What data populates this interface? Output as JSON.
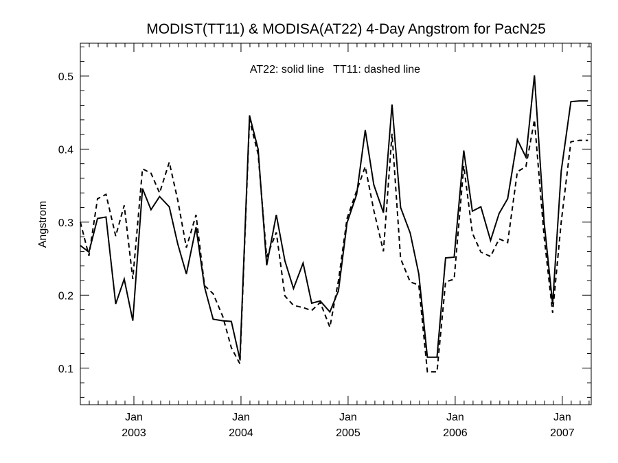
{
  "chart_data": {
    "type": "line",
    "title": "MODIST(TT11) & MODISA(AT22) 4-Day Angstrom for PacN25",
    "xlabel": "",
    "ylabel": "Angstrom",
    "annotation": "AT22: solid line   TT11: dashed line",
    "x_unit": "decimal year",
    "xlim": [
      2002.5,
      2007.27
    ],
    "ylim": [
      0.05,
      0.545
    ],
    "y_ticks": [
      0.1,
      0.2,
      0.3,
      0.4,
      0.5
    ],
    "y_tick_labels": [
      "0.1",
      "0.2",
      "0.3",
      "0.4",
      "0.5"
    ],
    "x_ticks": [
      2003.0,
      2004.0,
      2005.0,
      2006.0,
      2007.0
    ],
    "x_tick_labels": [
      {
        "month": "Jan",
        "year": "2003"
      },
      {
        "month": "Jan",
        "year": "2004"
      },
      {
        "month": "Jan",
        "year": "2005"
      },
      {
        "month": "Jan",
        "year": "2006"
      },
      {
        "month": "Jan",
        "year": "2007"
      }
    ],
    "grid": false,
    "series": [
      {
        "name": "AT22",
        "style": "solid",
        "color": "#000000",
        "x": [
          2002.5,
          2002.58,
          2002.66,
          2002.74,
          2002.83,
          2002.91,
          2002.99,
          2003.08,
          2003.16,
          2003.24,
          2003.33,
          2003.41,
          2003.49,
          2003.58,
          2003.66,
          2003.74,
          2003.83,
          2003.91,
          2003.99,
          2004.08,
          2004.16,
          2004.24,
          2004.33,
          2004.41,
          2004.49,
          2004.58,
          2004.66,
          2004.74,
          2004.83,
          2004.91,
          2004.99,
          2005.08,
          2005.16,
          2005.24,
          2005.33,
          2005.41,
          2005.49,
          2005.58,
          2005.66,
          2005.74,
          2005.83,
          2005.91,
          2005.99,
          2006.08,
          2006.16,
          2006.24,
          2006.33,
          2006.41,
          2006.49,
          2006.58,
          2006.66,
          2006.74,
          2006.83,
          2006.91,
          2006.99,
          2007.08,
          2007.16,
          2007.24
        ],
        "y": [
          0.268,
          0.259,
          0.305,
          0.307,
          0.188,
          0.222,
          0.165,
          0.346,
          0.317,
          0.335,
          0.321,
          0.27,
          0.229,
          0.293,
          0.211,
          0.167,
          0.165,
          0.164,
          0.112,
          0.446,
          0.4,
          0.241,
          0.31,
          0.247,
          0.209,
          0.244,
          0.189,
          0.192,
          0.177,
          0.206,
          0.299,
          0.338,
          0.426,
          0.351,
          0.313,
          0.461,
          0.32,
          0.285,
          0.229,
          0.115,
          0.115,
          0.251,
          0.252,
          0.398,
          0.315,
          0.321,
          0.275,
          0.312,
          0.332,
          0.413,
          0.389,
          0.501,
          0.3,
          0.188,
          0.37,
          0.465,
          0.466,
          0.466
        ]
      },
      {
        "name": "TT11",
        "style": "dashed",
        "color": "#000000",
        "x": [
          2002.5,
          2002.58,
          2002.66,
          2002.74,
          2002.83,
          2002.91,
          2002.99,
          2003.08,
          2003.16,
          2003.24,
          2003.33,
          2003.41,
          2003.49,
          2003.58,
          2003.66,
          2003.74,
          2003.83,
          2003.91,
          2003.99,
          2004.08,
          2004.16,
          2004.24,
          2004.33,
          2004.41,
          2004.49,
          2004.58,
          2004.66,
          2004.74,
          2004.83,
          2004.91,
          2004.99,
          2005.08,
          2005.16,
          2005.24,
          2005.33,
          2005.41,
          2005.49,
          2005.58,
          2005.66,
          2005.74,
          2005.83,
          2005.91,
          2005.99,
          2006.08,
          2006.16,
          2006.24,
          2006.33,
          2006.41,
          2006.49,
          2006.58,
          2006.66,
          2006.74,
          2006.83,
          2006.91,
          2006.99,
          2007.08,
          2007.16,
          2007.24
        ],
        "y": [
          0.3,
          0.254,
          0.332,
          0.338,
          0.281,
          0.323,
          0.222,
          0.373,
          0.367,
          0.34,
          0.382,
          0.33,
          0.265,
          0.31,
          0.213,
          0.202,
          0.171,
          0.128,
          0.106,
          0.44,
          0.393,
          0.252,
          0.286,
          0.199,
          0.186,
          0.183,
          0.179,
          0.19,
          0.156,
          0.22,
          0.305,
          0.343,
          0.376,
          0.316,
          0.26,
          0.421,
          0.25,
          0.218,
          0.214,
          0.095,
          0.095,
          0.218,
          0.222,
          0.377,
          0.285,
          0.259,
          0.253,
          0.277,
          0.272,
          0.369,
          0.376,
          0.44,
          0.28,
          0.176,
          0.3,
          0.41,
          0.412,
          0.412
        ]
      }
    ]
  }
}
